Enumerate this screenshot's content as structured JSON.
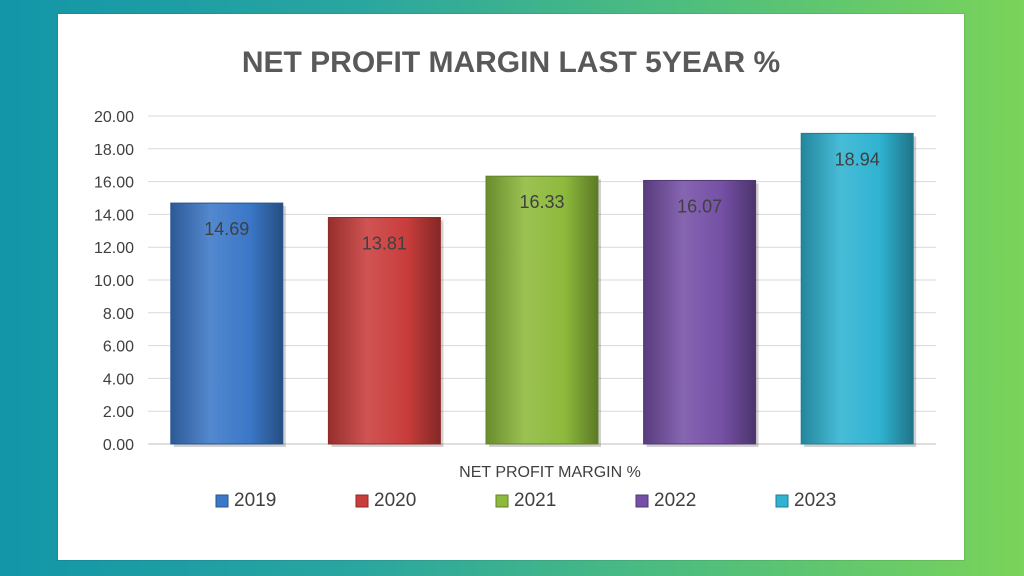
{
  "chart_data": {
    "type": "bar",
    "title": "NET PROFIT MARGIN LAST 5YEAR %",
    "xlabel": "NET PROFIT MARGIN %",
    "ylabel": "",
    "ylim": [
      0,
      20
    ],
    "yticks": [
      "0.00",
      "2.00",
      "4.00",
      "6.00",
      "8.00",
      "10.00",
      "12.00",
      "14.00",
      "16.00",
      "18.00",
      "20.00"
    ],
    "grid": true,
    "legend_position": "bottom",
    "series": [
      {
        "name": "2019",
        "values": [
          14.69
        ],
        "label": "14.69",
        "color": "#3b78c8"
      },
      {
        "name": "2020",
        "values": [
          13.81
        ],
        "label": "13.81",
        "color": "#c93d3b"
      },
      {
        "name": "2021",
        "values": [
          16.33
        ],
        "label": "16.33",
        "color": "#8dba3c"
      },
      {
        "name": "2022",
        "values": [
          16.07
        ],
        "label": "16.07",
        "color": "#7550a6"
      },
      {
        "name": "2023",
        "values": [
          18.94
        ],
        "label": "18.94",
        "color": "#2fb3d1"
      }
    ]
  }
}
